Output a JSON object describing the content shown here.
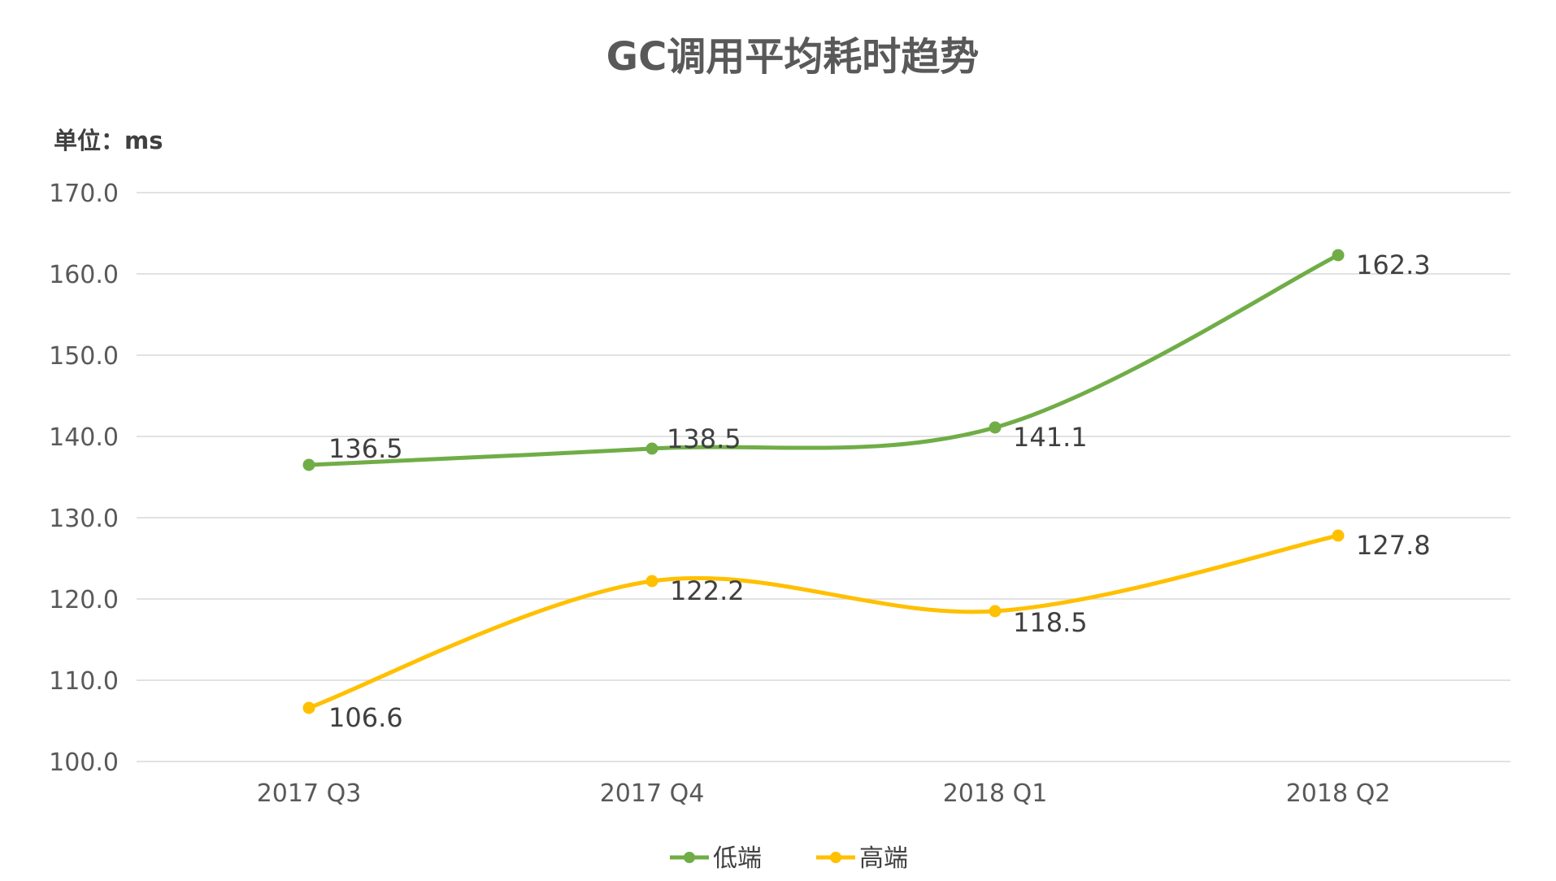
{
  "chart_data": {
    "type": "line",
    "title": "GC调用平均耗时趋势",
    "unit_label": "单位：ms",
    "categories": [
      "2017 Q3",
      "2017 Q4",
      "2018 Q1",
      "2018 Q2"
    ],
    "y_ticks": [
      "170.0",
      "160.0",
      "150.0",
      "140.0",
      "130.0",
      "120.0",
      "110.0",
      "100.0"
    ],
    "ylim": [
      100,
      170
    ],
    "grid": true,
    "smooth": true,
    "legend_position": "bottom",
    "series": [
      {
        "name": "低端",
        "color": "#70AD47",
        "values": [
          136.5,
          138.5,
          141.1,
          162.3
        ],
        "labels": [
          "136.5",
          "138.5",
          "141.1",
          "162.3"
        ]
      },
      {
        "name": "高端",
        "color": "#FFC000",
        "values": [
          106.6,
          122.2,
          118.5,
          127.8
        ],
        "labels": [
          "106.6",
          "122.2",
          "118.5",
          "127.8"
        ]
      }
    ]
  }
}
